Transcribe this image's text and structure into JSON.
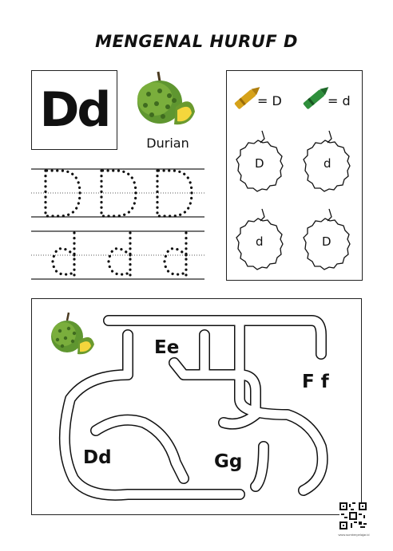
{
  "title": "MENGENAL HURUF D",
  "letter_card": {
    "letters": "Dd"
  },
  "fruit": {
    "name": "Durian"
  },
  "coloring_key": {
    "upper_label": "= D",
    "lower_label": "= d",
    "upper_color": "#d6a21a",
    "lower_color": "#2f8f3c"
  },
  "coloring_fruits": [
    "D",
    "d",
    "d",
    "D"
  ],
  "tracing": {
    "upper_row": [
      "D",
      "D",
      "D"
    ],
    "lower_row": [
      "d",
      "d",
      "d"
    ]
  },
  "maze": {
    "start": "Dd",
    "options": [
      "Ee",
      "F f",
      "Gg"
    ]
  },
  "qr": {
    "caption": "www.sumberpelajar.id"
  },
  "colors": {
    "durian_green": "#5a8c2a",
    "durian_flesh": "#f4d63c"
  }
}
